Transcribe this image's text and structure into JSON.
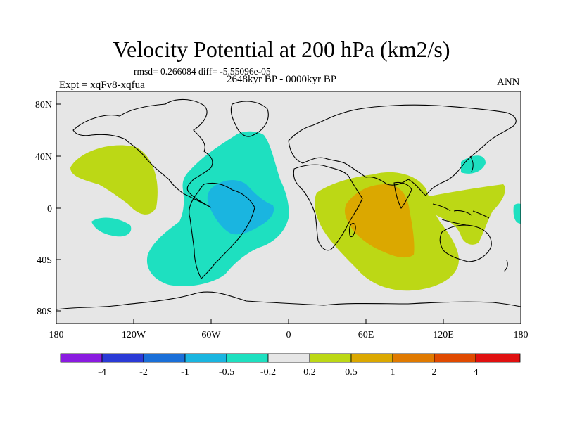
{
  "title": "Velocity Potential at 200 hPa (km2/s)",
  "stats": "rmsd= 0.266084 diff= -5.55096e-05",
  "experiment": "Expt = xqFv8-xqfua",
  "period": "2648kyr BP - 0000kyr BP",
  "season": "ANN",
  "colors": {
    "background_field": "#e6e6e6",
    "pos_0_2": "#bcd815",
    "pos_0_5": "#dba800",
    "neg_0_2": "#1ee0c0",
    "neg_0_5": "#1ab5e0",
    "coast": "#000000"
  },
  "lat_labels": [
    "80N",
    "40N",
    "0",
    "40S",
    "80S"
  ],
  "lon_labels": [
    "180",
    "120W",
    "60W",
    "0",
    "60E",
    "120E",
    "180"
  ],
  "colorbar": {
    "colors": [
      "#8a1be0",
      "#2a3ad6",
      "#1a6fd8",
      "#1ab5e0",
      "#1ee0c0",
      "#e6e6e6",
      "#bcd815",
      "#dba800",
      "#e07a00",
      "#e04a00",
      "#e01010"
    ],
    "labels": [
      "-4",
      "-2",
      "-1",
      "-0.5",
      "-0.2",
      "0.2",
      "0.5",
      "1",
      "2",
      "4"
    ]
  }
}
